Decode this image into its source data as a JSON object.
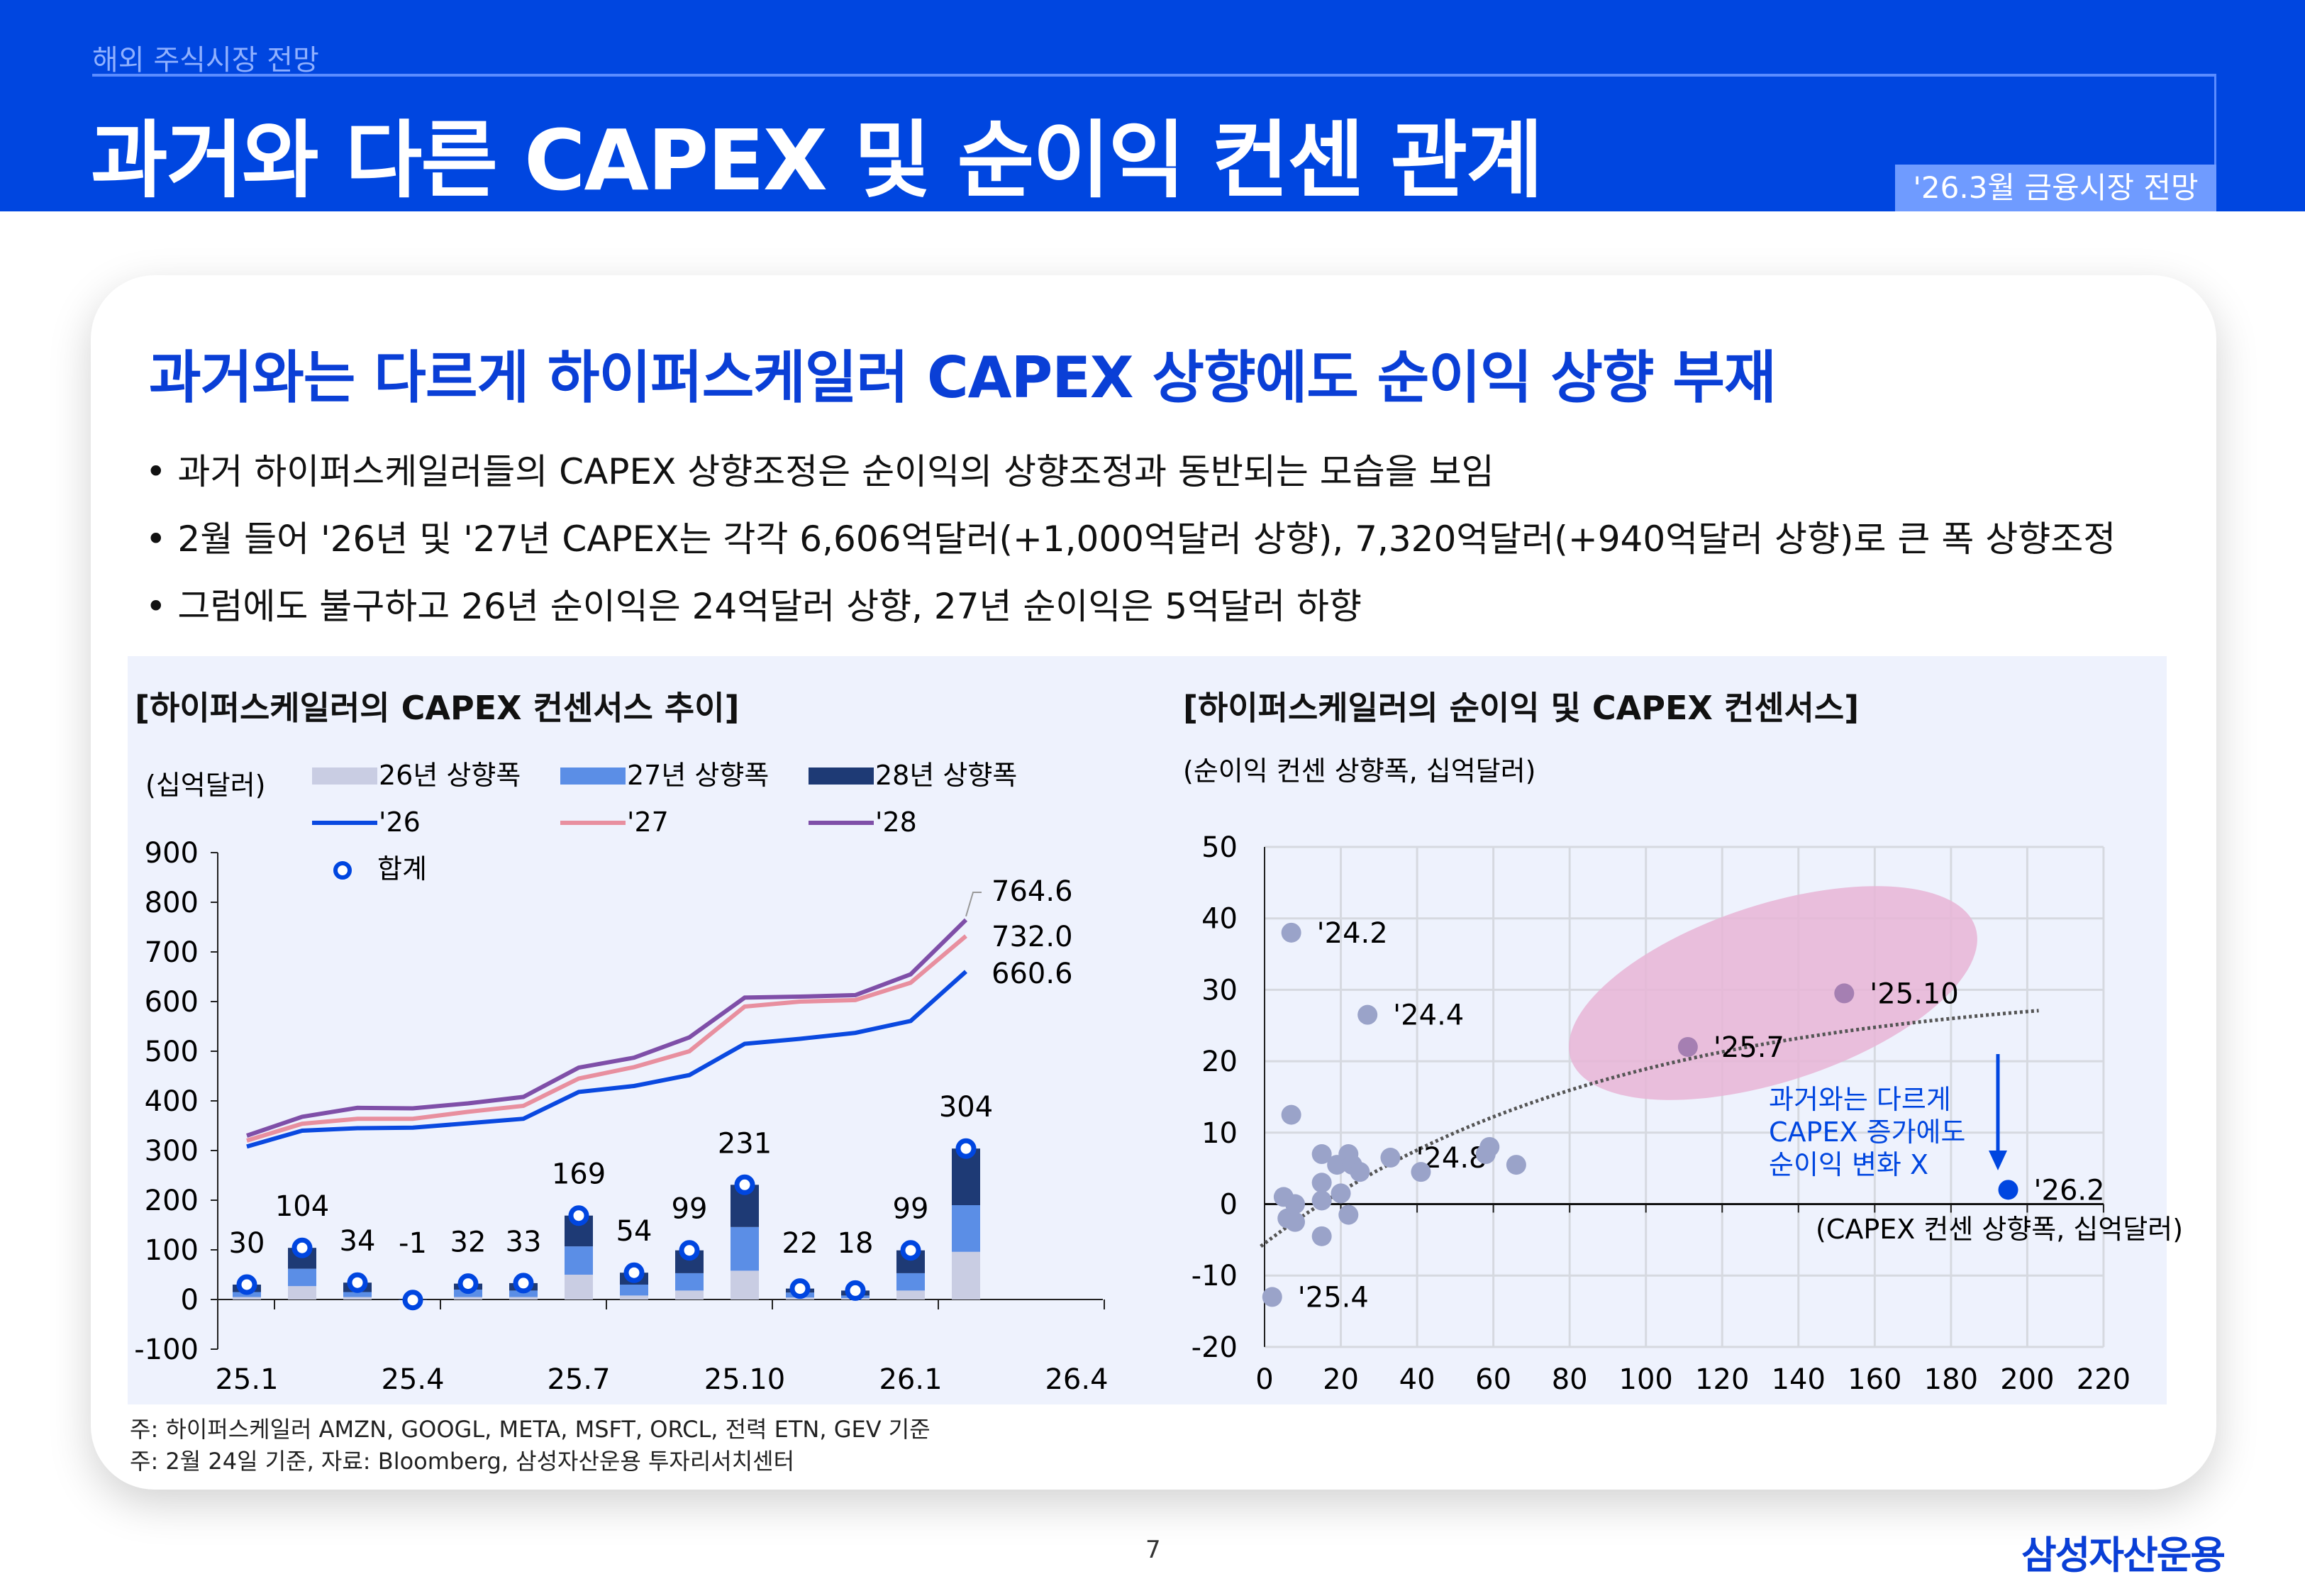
{
  "header": {
    "section": "해외 주식시장 전망",
    "title": "과거와 다른 CAPEX 및 순이익 컨센 관계",
    "badge": "'26.3월 금융시장 전망"
  },
  "content": {
    "heading": "과거와는 다르게 하이퍼스케일러 CAPEX 상향에도 순이익 상향 부재",
    "bullets": [
      "• 과거 하이퍼스케일러들의 CAPEX 상향조정은 순이익의 상향조정과 동반되는 모습을 보임",
      "• 2월 들어 '26년 및 '27년 CAPEX는 각각 6,606억달러(+1,000억달러 상향), 7,320억달러(+940억달러 상향)로 큰 폭 상향조정",
      "• 그럼에도 불구하고 26년 순이익은 24억달러 상향, 27년 순이익은 5억달러 하향"
    ],
    "footnotes": [
      "주: 하이퍼스케일러 AMZN, GOOGL, META, MSFT, ORCL, 전력 ETN, GEV 기준",
      "주: 2월 24일 기준, 자료: Bloomberg, 삼성자산운용 투자리서치센터"
    ]
  },
  "footer": {
    "page": "7",
    "logo": "삼성자산운용"
  },
  "colors": {
    "brand": "#0046e0",
    "up26": "#c9cde3",
    "up27": "#5b8ee6",
    "up28": "#1e3a75",
    "line26": "#0a49e0",
    "line27": "#e88f9f",
    "line28": "#7f4fa8",
    "dot": "#9aa3c9",
    "dot_highlight": "#a57fb2",
    "dot_latest": "#0046e0",
    "ellipse": "#e8b5d6"
  },
  "chart_data": [
    {
      "type": "bar",
      "title": "[하이퍼스케일러의 CAPEX 컨센서스 추이]",
      "ylabel": "(십억달러)",
      "ylim": [
        -100,
        900
      ],
      "yticks": [
        900,
        800,
        700,
        600,
        500,
        400,
        300,
        200,
        100,
        0,
        -100
      ],
      "xtick_labels": [
        "25.1",
        "25.4",
        "25.7",
        "25.10",
        "26.1",
        "26.4"
      ],
      "categories": [
        "25.1",
        "25.2",
        "25.3",
        "25.4",
        "25.5",
        "25.6",
        "25.7",
        "25.8",
        "25.9",
        "25.10",
        "25.11",
        "25.12",
        "26.1",
        "26.2"
      ],
      "stacked_series": [
        {
          "name": "26년 상향폭",
          "values": [
            5,
            27,
            5,
            0,
            5,
            5,
            50,
            8,
            18,
            58,
            4,
            3,
            18,
            96
          ]
        },
        {
          "name": "27년 상향폭",
          "values": [
            10,
            35,
            10,
            0,
            15,
            13,
            57,
            22,
            35,
            88,
            10,
            5,
            35,
            94
          ]
        },
        {
          "name": "28년 상향폭",
          "values": [
            15,
            42,
            19,
            -1,
            12,
            15,
            62,
            24,
            46,
            85,
            8,
            10,
            46,
            114
          ]
        }
      ],
      "total": {
        "name": "합계",
        "values": [
          30,
          104,
          34,
          -1,
          32,
          33,
          169,
          54,
          99,
          231,
          22,
          18,
          99,
          304
        ]
      },
      "line_series": [
        {
          "name": "'26",
          "values": [
            308,
            340,
            345,
            346,
            355,
            364,
            418,
            430,
            452,
            515,
            525,
            537,
            561,
            660.6
          ],
          "end_label": "660.6"
        },
        {
          "name": "'27",
          "values": [
            320,
            354,
            364,
            364,
            378,
            390,
            445,
            468,
            500,
            590,
            600,
            603,
            638,
            732.0
          ],
          "end_label": "732.0"
        },
        {
          "name": "'28",
          "values": [
            330,
            368,
            386,
            385,
            395,
            408,
            467,
            487,
            528,
            608,
            610,
            613,
            655,
            764.6
          ],
          "end_label": "764.6"
        }
      ],
      "legend": "top",
      "grid": false
    },
    {
      "type": "scatter",
      "title": "[하이퍼스케일러의 순이익 및 CAPEX 컨센서스]",
      "ylabel": "(순이익 컨센 상향폭, 십억달러)",
      "xlabel": "(CAPEX 컨센 상향폭, 십억달러)",
      "xlim": [
        0,
        220
      ],
      "ylim": [
        -20,
        50
      ],
      "xticks": [
        0,
        20,
        40,
        60,
        80,
        100,
        120,
        140,
        160,
        180,
        200,
        220
      ],
      "yticks": [
        50,
        40,
        30,
        20,
        10,
        0,
        -10,
        -20
      ],
      "grid": true,
      "points": [
        {
          "x": 7,
          "y": 38,
          "label": "'24.2"
        },
        {
          "x": 27,
          "y": 26.5,
          "label": "'24.4"
        },
        {
          "x": 7,
          "y": 12.5
        },
        {
          "x": 15,
          "y": 7
        },
        {
          "x": 19,
          "y": 5.5
        },
        {
          "x": 22,
          "y": 7
        },
        {
          "x": 23,
          "y": 5.5
        },
        {
          "x": 25,
          "y": 4.5
        },
        {
          "x": 33,
          "y": 6.5,
          "label": "'24.8"
        },
        {
          "x": 41,
          "y": 4.5
        },
        {
          "x": 15,
          "y": 3
        },
        {
          "x": 20,
          "y": 1.5
        },
        {
          "x": 15,
          "y": 0.5
        },
        {
          "x": 5,
          "y": 1
        },
        {
          "x": 8,
          "y": 0
        },
        {
          "x": 6,
          "y": -2
        },
        {
          "x": 8,
          "y": -2.5
        },
        {
          "x": 22,
          "y": -1.5
        },
        {
          "x": 15,
          "y": -4.5
        },
        {
          "x": 2,
          "y": -13,
          "label": "'25.4"
        },
        {
          "x": 58,
          "y": 7
        },
        {
          "x": 59,
          "y": 8
        },
        {
          "x": 66,
          "y": 5.5
        },
        {
          "x": 111,
          "y": 22,
          "label": "'25.7",
          "highlight": true
        },
        {
          "x": 152,
          "y": 29.5,
          "label": "'25.10",
          "highlight": true
        },
        {
          "x": 195,
          "y": 2,
          "label": "'26.2",
          "latest": true
        }
      ],
      "trendline": "dotted",
      "annotation": [
        "과거와는 다르게",
        "CAPEX 증가에도",
        "순이익 변화 X"
      ]
    }
  ]
}
